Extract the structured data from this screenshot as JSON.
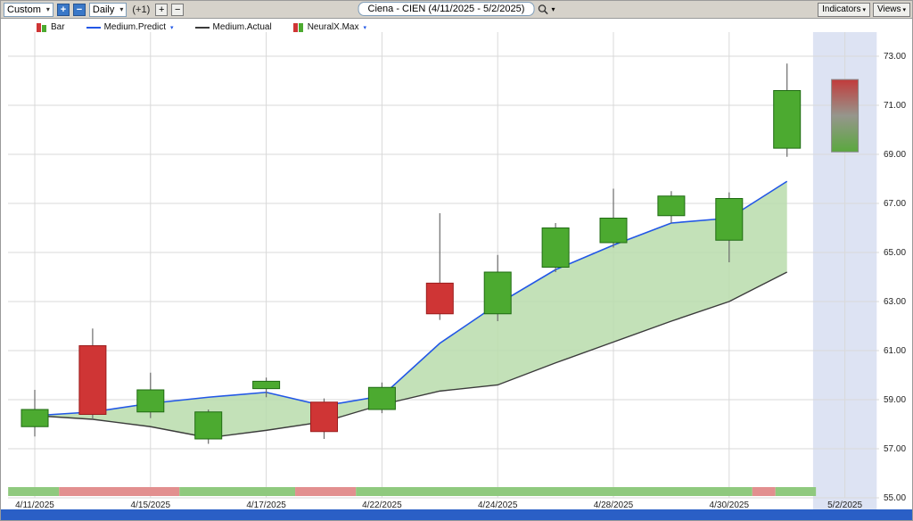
{
  "toolbar": {
    "range_select": "Custom",
    "period_select": "Daily",
    "offset_label": "(+1)",
    "plus": "+",
    "minus": "−",
    "indicators_label": "Indicators",
    "views_label": "Views"
  },
  "header": {
    "title": "Ciena - CIEN (4/11/2025 - 5/2/2025)"
  },
  "legend": {
    "bar": "Bar",
    "predict": "Medium.Predict",
    "actual": "Medium.Actual",
    "neuralx": "NeuralX.Max"
  },
  "colors": {
    "up": "#4caa30",
    "up_border": "#1f6b12",
    "down": "#cf3535",
    "down_border": "#9b1c1c",
    "wick": "#6b6b6b",
    "predict_line": "#2257e6",
    "actual_line": "#3b3b3b",
    "area": "#b9dcab",
    "forecast_band": "#dde3f3",
    "grid": "#d9d9d9",
    "strip_up": "#8fc97e",
    "strip_down": "#e28f8f"
  },
  "chart_data": {
    "type": "candlestick",
    "title": "Ciena - CIEN (4/11/2025 - 5/2/2025)",
    "ylim": [
      55,
      74
    ],
    "yticks": [
      73,
      71,
      69,
      67,
      65,
      63,
      61,
      59,
      57,
      55
    ],
    "xticks": [
      {
        "index": 0,
        "label": "4/11/2025"
      },
      {
        "index": 2,
        "label": "4/15/2025"
      },
      {
        "index": 4,
        "label": "4/17/2025"
      },
      {
        "index": 6,
        "label": "4/22/2025"
      },
      {
        "index": 8,
        "label": "4/24/2025"
      },
      {
        "index": 10,
        "label": "4/28/2025"
      },
      {
        "index": 12,
        "label": "4/30/2025"
      },
      {
        "index": 14,
        "label": "5/2/2025"
      }
    ],
    "candles": [
      {
        "date": "4/11/2025",
        "open": 57.9,
        "high": 59.4,
        "low": 57.5,
        "close": 58.6,
        "color": "green"
      },
      {
        "date": "4/14/2025",
        "open": 61.2,
        "high": 61.9,
        "low": 58.2,
        "close": 58.4,
        "color": "red"
      },
      {
        "date": "4/15/2025",
        "open": 58.5,
        "high": 60.1,
        "low": 58.25,
        "close": 59.4,
        "color": "green"
      },
      {
        "date": "4/16/2025",
        "open": 57.4,
        "high": 58.6,
        "low": 57.2,
        "close": 58.5,
        "color": "green"
      },
      {
        "date": "4/17/2025",
        "open": 59.45,
        "high": 59.9,
        "low": 59.1,
        "close": 59.75,
        "color": "green"
      },
      {
        "date": "4/21/2025",
        "open": 58.9,
        "high": 59.05,
        "low": 57.4,
        "close": 57.7,
        "color": "red"
      },
      {
        "date": "4/22/2025",
        "open": 58.6,
        "high": 59.7,
        "low": 58.45,
        "close": 59.5,
        "color": "green"
      },
      {
        "date": "4/23/2025",
        "open": 63.75,
        "high": 66.6,
        "low": 62.25,
        "close": 62.5,
        "color": "red"
      },
      {
        "date": "4/24/2025",
        "open": 62.5,
        "high": 64.9,
        "low": 62.2,
        "close": 64.2,
        "color": "green"
      },
      {
        "date": "4/25/2025",
        "open": 64.4,
        "high": 66.2,
        "low": 64.2,
        "close": 66.0,
        "color": "green"
      },
      {
        "date": "4/28/2025",
        "open": 65.4,
        "high": 67.6,
        "low": 65.2,
        "close": 66.4,
        "color": "green"
      },
      {
        "date": "4/29/2025",
        "open": 66.5,
        "high": 67.5,
        "low": 66.2,
        "close": 67.3,
        "color": "green"
      },
      {
        "date": "4/30/2025",
        "open": 65.5,
        "high": 67.45,
        "low": 64.6,
        "close": 67.2,
        "color": "green"
      },
      {
        "date": "5/1/2025",
        "open": 69.25,
        "high": 72.7,
        "low": 68.9,
        "close": 71.6,
        "color": "green"
      },
      {
        "date": "5/2/2025",
        "open": 69.1,
        "high": 72.05,
        "low": 69.1,
        "close": 72.05,
        "color": "forecast"
      }
    ],
    "series": [
      {
        "name": "Medium.Predict",
        "values": [
          58.35,
          58.5,
          58.85,
          59.1,
          59.3,
          58.75,
          59.15,
          61.3,
          62.9,
          64.3,
          65.3,
          66.2,
          66.4,
          67.9
        ]
      },
      {
        "name": "Medium.Actual",
        "values": [
          58.35,
          58.2,
          57.9,
          57.45,
          57.75,
          58.1,
          58.8,
          59.35,
          59.6,
          60.5,
          61.35,
          62.2,
          63.0,
          64.2
        ]
      }
    ],
    "strip_segments": [
      {
        "from": -0.46,
        "to": 0.42,
        "color": "green"
      },
      {
        "from": 0.42,
        "to": 2.5,
        "color": "red"
      },
      {
        "from": 2.5,
        "to": 4.5,
        "color": "green"
      },
      {
        "from": 4.5,
        "to": 5.55,
        "color": "red"
      },
      {
        "from": 5.55,
        "to": 12.4,
        "color": "green"
      },
      {
        "from": 12.4,
        "to": 12.8,
        "color": "red"
      },
      {
        "from": 12.8,
        "to": 13.5,
        "color": "green"
      }
    ],
    "forecast_band_x_index": [
      13.45,
      14.55
    ],
    "legend_entries": [
      "Bar",
      "Medium.Predict",
      "Medium.Actual",
      "NeuralX.Max"
    ],
    "grid": true
  }
}
